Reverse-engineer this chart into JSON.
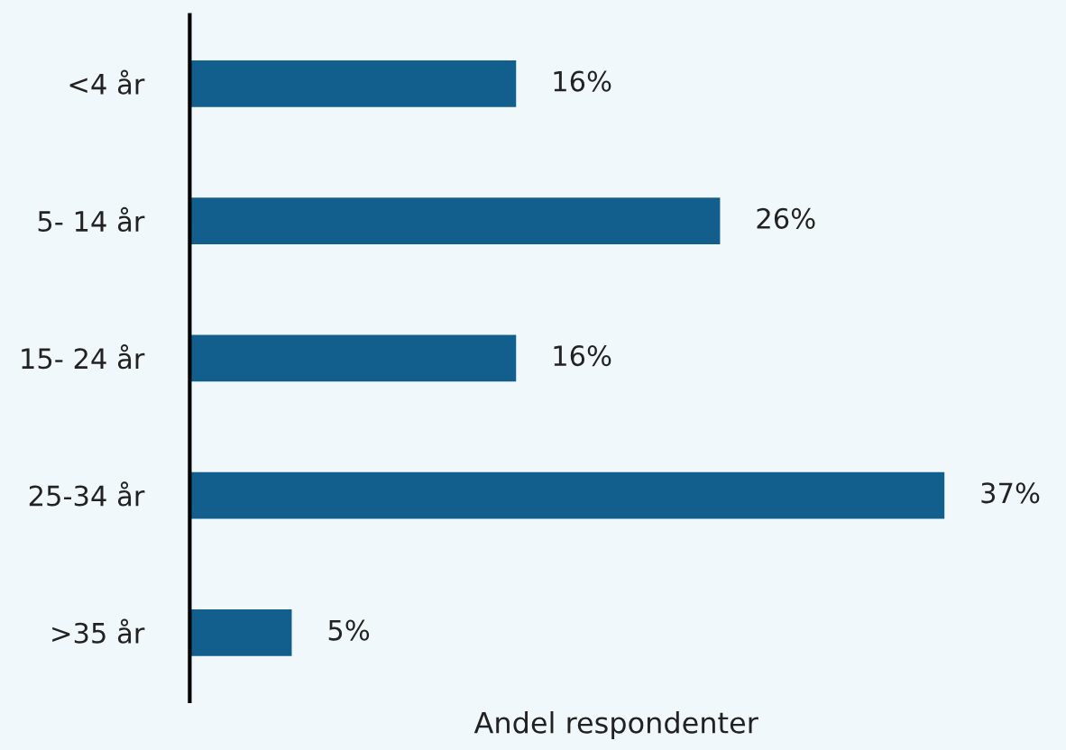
{
  "chart_data": {
    "type": "bar",
    "orientation": "horizontal",
    "xlabel": "Andel respondenter",
    "categories": [
      "<4 år",
      "5- 14 år",
      "15- 24 år",
      "25-34 år",
      ">35 år"
    ],
    "values": [
      16,
      26,
      16,
      37,
      5
    ],
    "value_labels": [
      "16%",
      "26%",
      "16%",
      "37%",
      "5%"
    ],
    "color": "#125f8e",
    "grid": false,
    "legend": false
  }
}
